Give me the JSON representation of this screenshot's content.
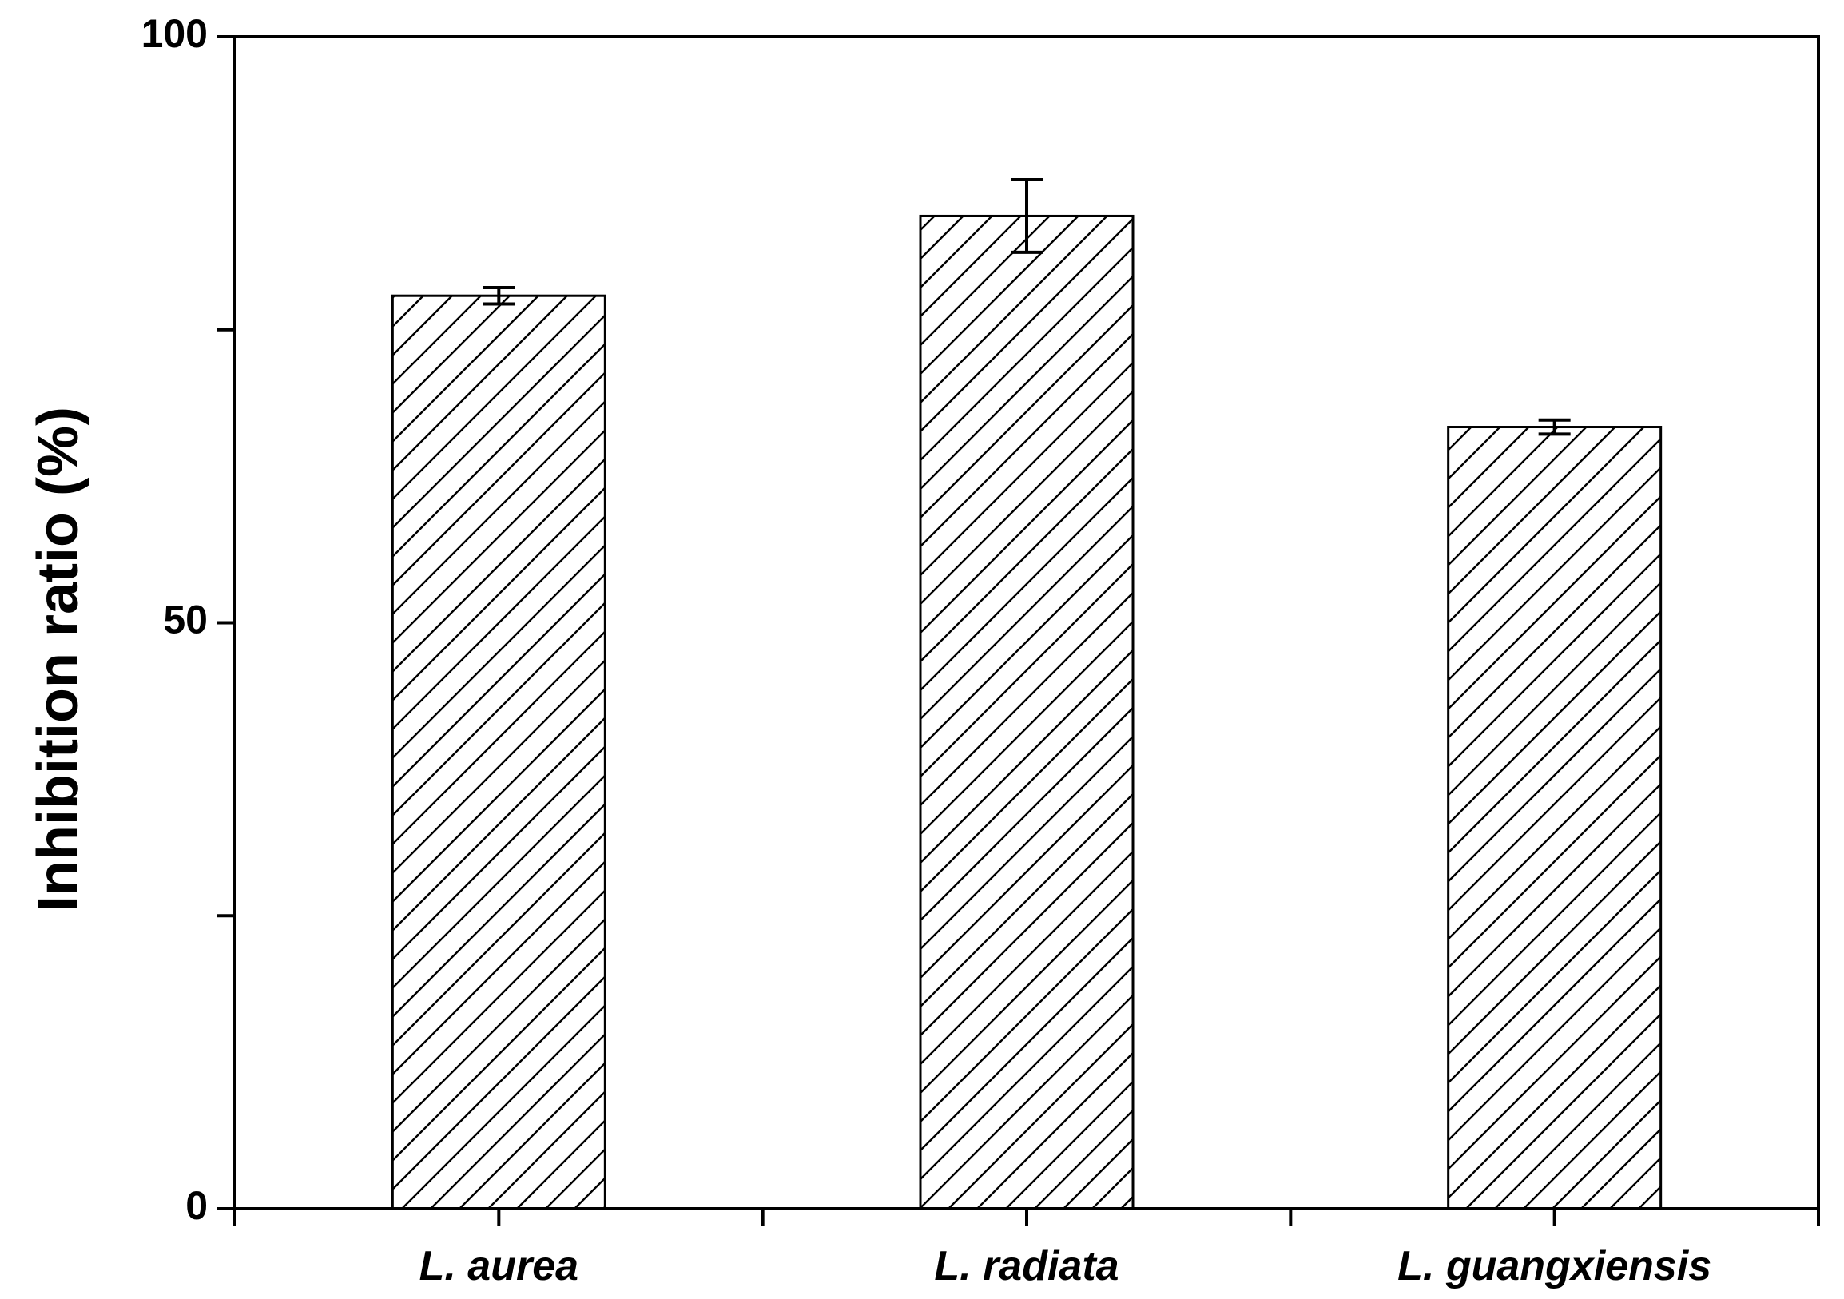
{
  "chart_data": {
    "type": "bar",
    "title": "",
    "xlabel": "",
    "ylabel": "Inhibition ratio (%)",
    "categories": [
      "L. aurea",
      "L. radiata",
      "L. guangxiensis"
    ],
    "values": [
      77.9,
      84.7,
      66.7
    ],
    "errors": [
      0.7,
      3.1,
      0.6
    ],
    "ylim": [
      0,
      100
    ],
    "y_tick_labels": [
      "0",
      "50",
      "100"
    ],
    "y_major_ticks": [
      0,
      25,
      50,
      75,
      100
    ],
    "bar_fill": "hatched",
    "bar_color": "#ffffff",
    "line_color": "#000000",
    "grid": false,
    "legend": "none"
  }
}
